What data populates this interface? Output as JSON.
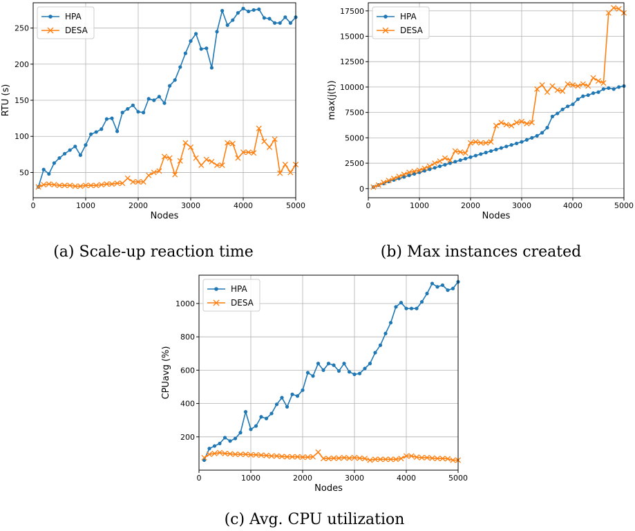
{
  "colors": {
    "hpa": "#1f77b4",
    "desa": "#ff7f0e",
    "grid": "#b0b0b0"
  },
  "chart_data": [
    {
      "type": "line",
      "caption": "(a) Scale-up reaction time",
      "xlabel": "Nodes",
      "ylabel": "RTU (s)",
      "xlim": [
        0,
        5000
      ],
      "ylim": [
        15,
        285
      ],
      "xticks": [
        0,
        1000,
        2000,
        3000,
        4000,
        5000
      ],
      "yticks": [
        50,
        100,
        150,
        200,
        250
      ],
      "ytick_labels": [
        "50",
        "100",
        "150",
        "200",
        "250"
      ],
      "legend_position": "upper-left",
      "grid": true,
      "series": [
        {
          "name": "HPA",
          "marker": "dot",
          "x": [
            100,
            200,
            300,
            400,
            500,
            600,
            700,
            800,
            900,
            1000,
            1100,
            1200,
            1300,
            1400,
            1500,
            1600,
            1700,
            1800,
            1900,
            2000,
            2100,
            2200,
            2300,
            2400,
            2500,
            2600,
            2700,
            2800,
            2900,
            3000,
            3100,
            3200,
            3300,
            3400,
            3500,
            3600,
            3700,
            3800,
            3900,
            4000,
            4100,
            4200,
            4300,
            4400,
            4500,
            4600,
            4700,
            4800,
            4900,
            5000
          ],
          "y": [
            30,
            54,
            48,
            63,
            70,
            76,
            81,
            86,
            74,
            88,
            103,
            106,
            110,
            124,
            125,
            107,
            133,
            138,
            143,
            134,
            133,
            152,
            150,
            155,
            146,
            170,
            178,
            196,
            215,
            232,
            242,
            221,
            222,
            195,
            245,
            274,
            254,
            261,
            271,
            277,
            273,
            275,
            276,
            264,
            263,
            257,
            257,
            265,
            257,
            265
          ]
        },
        {
          "name": "DESA",
          "marker": "x",
          "x": [
            100,
            200,
            300,
            400,
            500,
            600,
            700,
            800,
            900,
            1000,
            1100,
            1200,
            1300,
            1400,
            1500,
            1600,
            1700,
            1800,
            1900,
            2000,
            2100,
            2200,
            2300,
            2400,
            2500,
            2600,
            2700,
            2800,
            2900,
            3000,
            3100,
            3200,
            3300,
            3400,
            3500,
            3600,
            3700,
            3800,
            3900,
            4000,
            4100,
            4200,
            4300,
            4400,
            4500,
            4600,
            4700,
            4800,
            4900,
            5000
          ],
          "y": [
            30,
            33,
            34,
            33,
            32,
            32,
            32,
            31,
            31,
            32,
            32,
            32,
            33,
            34,
            34,
            35,
            35,
            42,
            37,
            37,
            37,
            46,
            50,
            52,
            72,
            70,
            47,
            66,
            91,
            85,
            70,
            60,
            68,
            65,
            60,
            60,
            91,
            90,
            70,
            78,
            78,
            77,
            111,
            93,
            85,
            96,
            49,
            61,
            50,
            61
          ]
        }
      ]
    },
    {
      "type": "line",
      "caption": "(b) Max instances created",
      "xlabel": "Nodes",
      "ylabel": "max(j(t))",
      "xlim": [
        0,
        5000
      ],
      "ylim": [
        -900,
        18300
      ],
      "xticks": [
        0,
        1000,
        2000,
        3000,
        4000,
        5000
      ],
      "yticks": [
        0,
        2500,
        5000,
        7500,
        10000,
        12500,
        15000,
        17500
      ],
      "ytick_labels": [
        "0",
        "2500",
        "5000",
        "7500",
        "10000",
        "12500",
        "15000",
        "17500"
      ],
      "legend_position": "upper-left",
      "grid": true,
      "series": [
        {
          "name": "HPA",
          "marker": "dot",
          "x": [
            100,
            200,
            300,
            400,
            500,
            600,
            700,
            800,
            900,
            1000,
            1100,
            1200,
            1300,
            1400,
            1500,
            1600,
            1700,
            1800,
            1900,
            2000,
            2100,
            2200,
            2300,
            2400,
            2500,
            2600,
            2700,
            2800,
            2900,
            3000,
            3100,
            3200,
            3300,
            3400,
            3500,
            3600,
            3700,
            3800,
            3900,
            4000,
            4100,
            4200,
            4300,
            4400,
            4500,
            4600,
            4700,
            4800,
            4900,
            5000
          ],
          "y": [
            150,
            350,
            500,
            700,
            850,
            1000,
            1150,
            1300,
            1450,
            1600,
            1750,
            1900,
            2050,
            2200,
            2350,
            2500,
            2650,
            2800,
            2950,
            3100,
            3250,
            3400,
            3550,
            3700,
            3850,
            4000,
            4150,
            4300,
            4450,
            4600,
            4800,
            5000,
            5200,
            5500,
            6000,
            7100,
            7400,
            7800,
            8100,
            8300,
            8800,
            9100,
            9200,
            9400,
            9500,
            9800,
            9900,
            9800,
            10000,
            10100
          ]
        },
        {
          "name": "DESA",
          "marker": "x",
          "x": [
            100,
            200,
            300,
            400,
            500,
            600,
            700,
            800,
            900,
            1000,
            1100,
            1200,
            1300,
            1400,
            1500,
            1600,
            1700,
            1800,
            1900,
            2000,
            2100,
            2200,
            2300,
            2400,
            2500,
            2600,
            2700,
            2800,
            2900,
            3000,
            3100,
            3200,
            3300,
            3400,
            3500,
            3600,
            3700,
            3800,
            3900,
            4000,
            4100,
            4200,
            4300,
            4400,
            4500,
            4600,
            4700,
            4800,
            4900,
            5000
          ],
          "y": [
            150,
            350,
            600,
            800,
            1000,
            1200,
            1400,
            1600,
            1700,
            1800,
            2000,
            2200,
            2500,
            2700,
            3000,
            2800,
            3700,
            3600,
            3500,
            4500,
            4600,
            4500,
            4500,
            4600,
            6200,
            6500,
            6300,
            6200,
            6500,
            6600,
            6400,
            6500,
            9800,
            10200,
            9500,
            10100,
            9700,
            9600,
            10300,
            10200,
            10100,
            10300,
            10100,
            10900,
            10600,
            10400,
            17300,
            17800,
            17700,
            17300
          ]
        }
      ]
    },
    {
      "type": "line",
      "caption": "(c) Avg. CPU utilization",
      "xlabel": "Nodes",
      "ylabel": "CPUavg (%)",
      "xlim": [
        0,
        5000
      ],
      "ylim": [
        0,
        1170
      ],
      "xticks": [
        0,
        1000,
        2000,
        3000,
        4000,
        5000
      ],
      "yticks": [
        200,
        400,
        600,
        800,
        1000
      ],
      "ytick_labels": [
        "200",
        "400",
        "600",
        "800",
        "1000"
      ],
      "legend_position": "upper-left",
      "grid": true,
      "series": [
        {
          "name": "HPA",
          "marker": "dot",
          "x": [
            100,
            200,
            300,
            400,
            500,
            600,
            700,
            800,
            900,
            1000,
            1100,
            1200,
            1300,
            1400,
            1500,
            1600,
            1700,
            1800,
            1900,
            2000,
            2100,
            2200,
            2300,
            2400,
            2500,
            2600,
            2700,
            2800,
            2900,
            3000,
            3100,
            3200,
            3300,
            3400,
            3500,
            3600,
            3700,
            3800,
            3900,
            4000,
            4100,
            4200,
            4300,
            4400,
            4500,
            4600,
            4700,
            4800,
            4900,
            5000
          ],
          "y": [
            60,
            130,
            145,
            160,
            195,
            175,
            190,
            225,
            350,
            245,
            265,
            320,
            310,
            340,
            395,
            435,
            380,
            455,
            445,
            480,
            585,
            565,
            640,
            600,
            640,
            630,
            595,
            640,
            590,
            575,
            580,
            610,
            640,
            705,
            750,
            820,
            885,
            980,
            1005,
            970,
            970,
            970,
            1010,
            1060,
            1120,
            1100,
            1110,
            1080,
            1090,
            1130
          ]
        },
        {
          "name": "DESA",
          "marker": "x",
          "x": [
            100,
            200,
            300,
            400,
            500,
            600,
            700,
            800,
            900,
            1000,
            1100,
            1200,
            1300,
            1400,
            1500,
            1600,
            1700,
            1800,
            1900,
            2000,
            2100,
            2200,
            2300,
            2400,
            2500,
            2600,
            2700,
            2800,
            2900,
            3000,
            3100,
            3200,
            3300,
            3400,
            3500,
            3600,
            3700,
            3800,
            3900,
            4000,
            4100,
            4200,
            4300,
            4400,
            4500,
            4600,
            4700,
            4800,
            4900,
            5000
          ],
          "y": [
            75,
            95,
            100,
            105,
            100,
            98,
            95,
            95,
            95,
            92,
            92,
            90,
            88,
            85,
            85,
            82,
            80,
            80,
            80,
            78,
            78,
            80,
            108,
            70,
            70,
            72,
            72,
            75,
            72,
            75,
            72,
            70,
            60,
            65,
            65,
            65,
            65,
            65,
            70,
            85,
            85,
            78,
            75,
            75,
            72,
            70,
            70,
            68,
            60,
            60
          ]
        }
      ]
    }
  ]
}
